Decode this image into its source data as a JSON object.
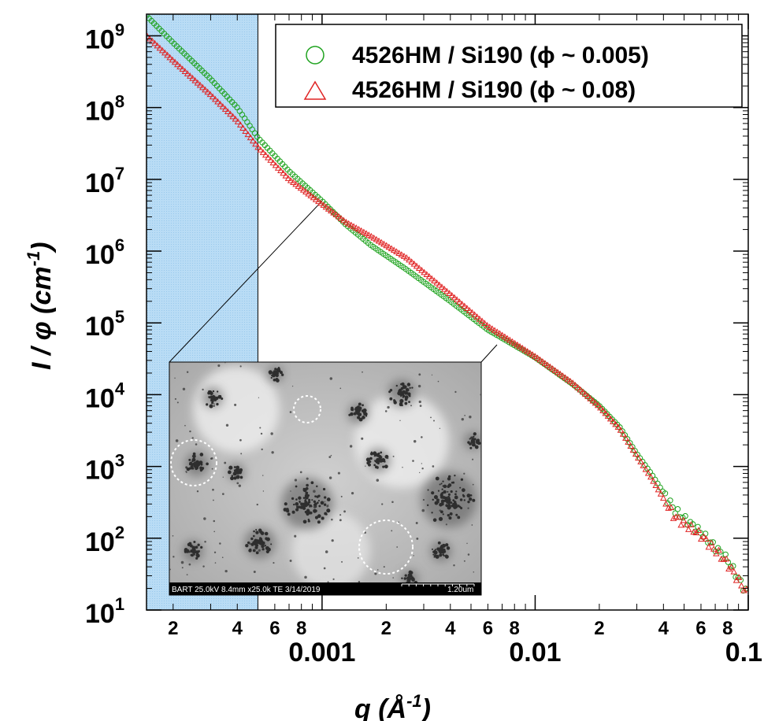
{
  "chart_data": {
    "type": "scatter",
    "xscale": "log",
    "yscale": "log",
    "xlim": [
      0.00015,
      0.1
    ],
    "ylim": [
      10,
      2000000000
    ],
    "xlabel": {
      "main": "q (Å",
      "sup": "-1",
      "close": ")"
    },
    "ylabel": {
      "main": "I / φ (cm",
      "sup": "-1",
      "close": ")"
    },
    "x_major_ticks": [
      {
        "value": 0.001,
        "label": "0.001"
      },
      {
        "value": 0.01,
        "label": "0.01"
      },
      {
        "value": 0.1,
        "label": "0.1"
      }
    ],
    "x_minor_ticks": [
      {
        "value": 0.0002,
        "label": "2"
      },
      {
        "value": 0.0004,
        "label": "4"
      },
      {
        "value": 0.0006,
        "label": "6"
      },
      {
        "value": 0.0008,
        "label": "8"
      },
      {
        "value": 0.002,
        "label": "2"
      },
      {
        "value": 0.004,
        "label": "4"
      },
      {
        "value": 0.006,
        "label": "6"
      },
      {
        "value": 0.008,
        "label": "8"
      },
      {
        "value": 0.02,
        "label": "2"
      },
      {
        "value": 0.04,
        "label": "4"
      },
      {
        "value": 0.06,
        "label": "6"
      },
      {
        "value": 0.08,
        "label": "8"
      }
    ],
    "y_ticks": [
      {
        "value": 10,
        "base": "10",
        "exp": "1"
      },
      {
        "value": 100,
        "base": "10",
        "exp": "2"
      },
      {
        "value": 1000,
        "base": "10",
        "exp": "3"
      },
      {
        "value": 10000,
        "base": "10",
        "exp": "4"
      },
      {
        "value": 100000,
        "base": "10",
        "exp": "5"
      },
      {
        "value": 1000000,
        "base": "10",
        "exp": "6"
      },
      {
        "value": 10000000,
        "base": "10",
        "exp": "7"
      },
      {
        "value": 100000000,
        "base": "10",
        "exp": "8"
      },
      {
        "value": 1000000000,
        "base": "10",
        "exp": "9"
      }
    ],
    "shaded_region": {
      "x": [
        0.00015,
        0.0005
      ],
      "color": "#b9dcf5"
    },
    "legend_position": "top-right",
    "series": [
      {
        "name": "4526HM / Si190 (ϕ ~ 0.005)",
        "marker": "circle",
        "color": "#1fa31f",
        "curve": [
          [
            0.00015,
            1900000000
          ],
          [
            0.0002,
            800000000
          ],
          [
            0.0003,
            250000000
          ],
          [
            0.0004,
            100000000
          ],
          [
            0.0005,
            38000000
          ],
          [
            0.0007,
            13000000
          ],
          [
            0.001,
            5000000
          ],
          [
            0.0013,
            2300000
          ],
          [
            0.0017,
            1200000
          ],
          [
            0.0025,
            550000
          ],
          [
            0.004,
            200000
          ],
          [
            0.006,
            80000
          ],
          [
            0.01,
            33000
          ],
          [
            0.015,
            14000
          ],
          [
            0.02,
            7000
          ],
          [
            0.025,
            3500
          ],
          [
            0.03,
            1500
          ],
          [
            0.035,
            800
          ],
          [
            0.045,
            250
          ],
          [
            0.06,
            120
          ],
          [
            0.08,
            50
          ],
          [
            0.1,
            16
          ]
        ]
      },
      {
        "name": "4526HM / Si190 (ϕ ~ 0.08)",
        "marker": "triangle",
        "color": "#e02424",
        "curve": [
          [
            0.00015,
            1000000000
          ],
          [
            0.0002,
            450000000
          ],
          [
            0.0003,
            150000000
          ],
          [
            0.0004,
            65000000
          ],
          [
            0.0005,
            28000000
          ],
          [
            0.0007,
            10000000
          ],
          [
            0.001,
            4500000
          ],
          [
            0.0013,
            2500000
          ],
          [
            0.0017,
            1600000
          ],
          [
            0.0025,
            800000
          ],
          [
            0.004,
            250000
          ],
          [
            0.006,
            90000
          ],
          [
            0.01,
            34000
          ],
          [
            0.015,
            14500
          ],
          [
            0.02,
            6800
          ],
          [
            0.025,
            3300
          ],
          [
            0.03,
            1400
          ],
          [
            0.035,
            700
          ],
          [
            0.045,
            200
          ],
          [
            0.06,
            110
          ],
          [
            0.08,
            45
          ],
          [
            0.1,
            16
          ]
        ]
      }
    ]
  },
  "inset": {
    "caption_left": "BART 25.0kV 8.4mm x25.0k TE 3/14/2019",
    "caption_right": "1.20um",
    "zoom_anchor_q": 0.001,
    "zoom_anchor_I": 5000000
  }
}
